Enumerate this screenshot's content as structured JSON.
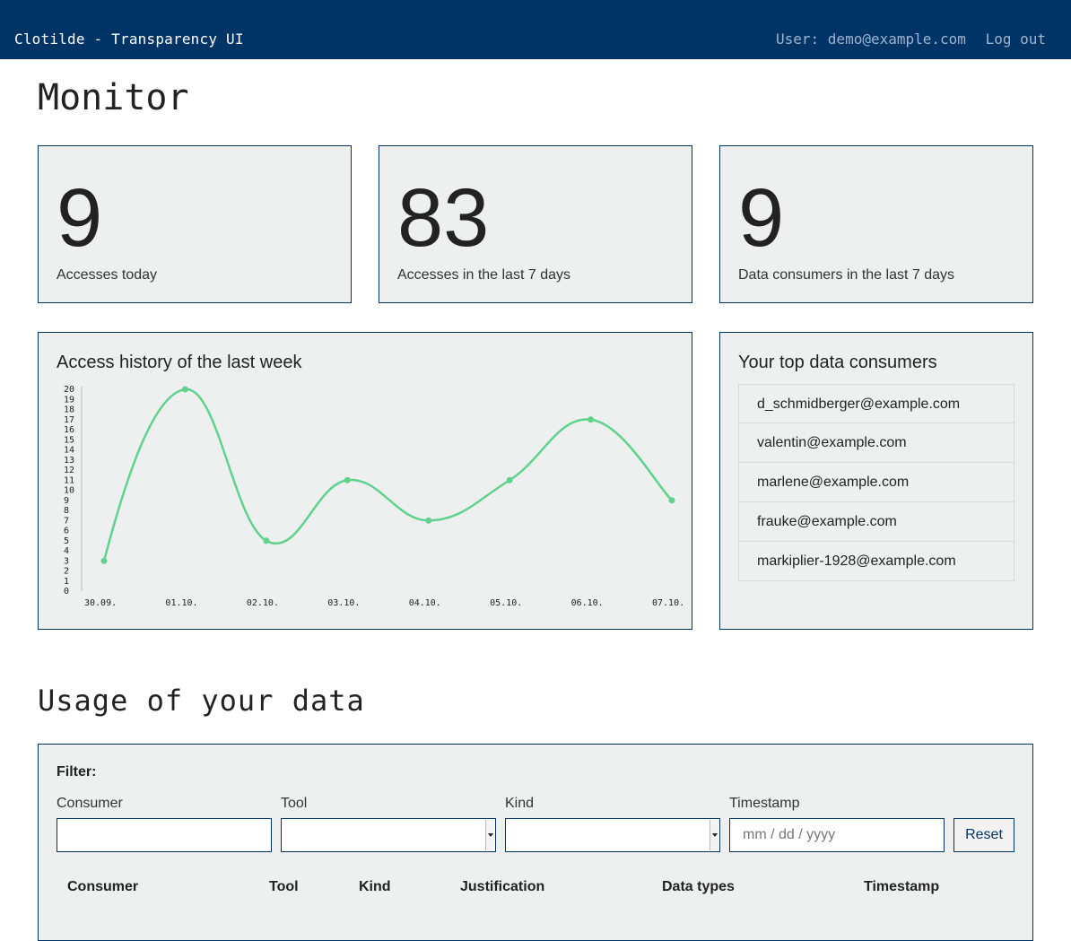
{
  "header": {
    "app_title": "Clotilde - Transparency UI",
    "user_text": "User: demo@example.com",
    "logout_label": "Log out"
  },
  "page_title": "Monitor",
  "stats": [
    {
      "value": "9",
      "label": "Accesses today"
    },
    {
      "value": "83",
      "label": "Accesses in the last 7 days"
    },
    {
      "value": "9",
      "label": "Data consumers in the last 7 days"
    }
  ],
  "chart": {
    "title": "Access history of the last week"
  },
  "chart_data": {
    "type": "line",
    "x": [
      "30.09.",
      "01.10.",
      "02.10.",
      "03.10.",
      "04.10.",
      "05.10.",
      "06.10.",
      "07.10."
    ],
    "values": [
      3,
      20,
      5,
      11,
      7,
      11,
      17,
      9
    ],
    "ylim": [
      0,
      20
    ],
    "yticks": [
      0,
      1,
      2,
      3,
      4,
      5,
      6,
      7,
      8,
      9,
      10,
      11,
      12,
      13,
      14,
      15,
      16,
      17,
      18,
      19,
      20
    ],
    "smooth": true,
    "color": "#5fd38d",
    "grid": false
  },
  "top_consumers": {
    "title": "Your top data consumers",
    "items": [
      "d_schmidberger@example.com",
      "valentin@example.com",
      "marlene@example.com",
      "frauke@example.com",
      "markiplier-1928@example.com"
    ]
  },
  "usage": {
    "title": "Usage of your data",
    "filter_heading": "Filter:",
    "fields": {
      "consumer_label": "Consumer",
      "tool_label": "Tool",
      "kind_label": "Kind",
      "timestamp_label": "Timestamp",
      "timestamp_placeholder": "mm / dd / yyyy"
    },
    "reset_label": "Reset",
    "columns": [
      "Consumer",
      "Tool",
      "Kind",
      "Justification",
      "Data types",
      "Timestamp"
    ]
  },
  "colors": {
    "header_bg": "#003366",
    "card_bg": "#eeefef",
    "card_border": "#003366",
    "line": "#5fd38d"
  }
}
